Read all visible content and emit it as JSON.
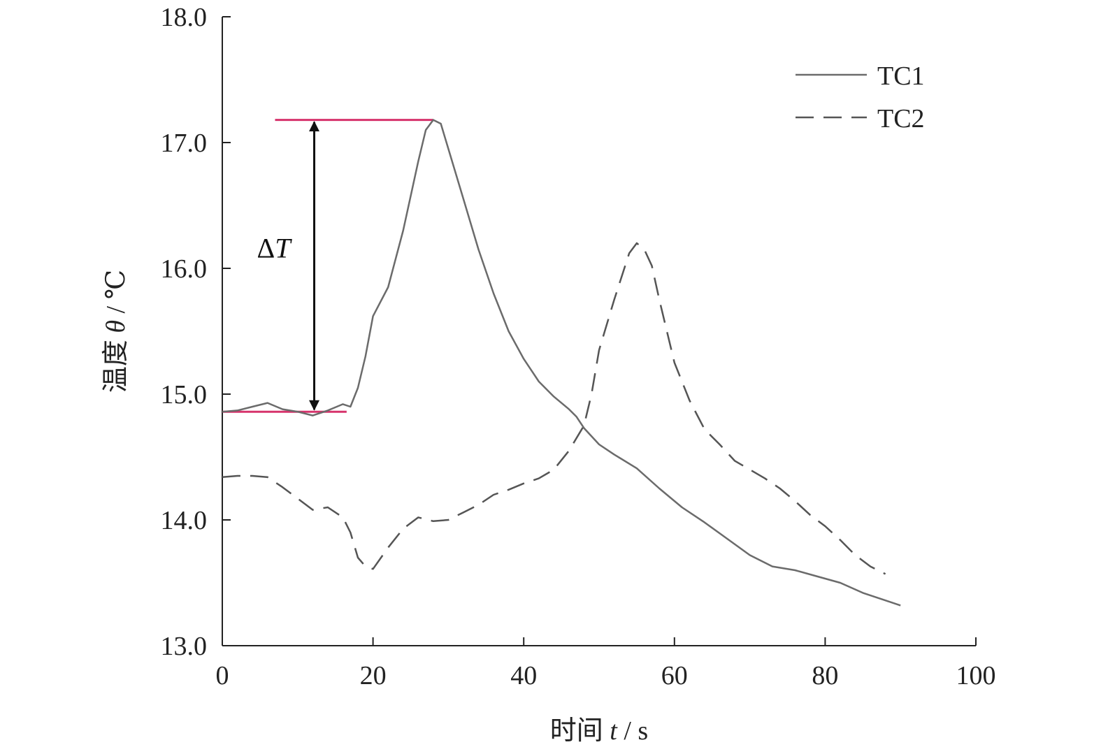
{
  "chart_data": {
    "type": "line",
    "xlabel": {
      "prefix": "时间 ",
      "var": "t",
      "suffix": " / s"
    },
    "ylabel": {
      "prefix": "温度 ",
      "var": "θ",
      "suffix": " / ℃"
    },
    "xlim": [
      0,
      100
    ],
    "ylim": [
      13.0,
      18.0
    ],
    "x_ticks": [
      "0",
      "20",
      "40",
      "60",
      "80",
      "100"
    ],
    "y_ticks": [
      "13.0",
      "14.0",
      "15.0",
      "16.0",
      "17.0",
      "18.0"
    ],
    "grid": false,
    "legend_position": "top-right",
    "series": [
      {
        "name": "TC1",
        "style": "solid",
        "color": "#6b6b6b",
        "points": [
          [
            0,
            14.86
          ],
          [
            2,
            14.87
          ],
          [
            4,
            14.9
          ],
          [
            6,
            14.93
          ],
          [
            8,
            14.88
          ],
          [
            10,
            14.86
          ],
          [
            12,
            14.83
          ],
          [
            14,
            14.87
          ],
          [
            16,
            14.92
          ],
          [
            17,
            14.9
          ],
          [
            18,
            15.05
          ],
          [
            19,
            15.3
          ],
          [
            20,
            15.62
          ],
          [
            22,
            15.85
          ],
          [
            24,
            16.3
          ],
          [
            26,
            16.85
          ],
          [
            27,
            17.1
          ],
          [
            28,
            17.18
          ],
          [
            29,
            17.15
          ],
          [
            30,
            16.95
          ],
          [
            32,
            16.55
          ],
          [
            34,
            16.15
          ],
          [
            36,
            15.8
          ],
          [
            38,
            15.5
          ],
          [
            40,
            15.28
          ],
          [
            42,
            15.1
          ],
          [
            44,
            14.98
          ],
          [
            46,
            14.88
          ],
          [
            47,
            14.82
          ],
          [
            48,
            14.73
          ],
          [
            50,
            14.6
          ],
          [
            52,
            14.52
          ],
          [
            55,
            14.41
          ],
          [
            58,
            14.25
          ],
          [
            61,
            14.1
          ],
          [
            64,
            13.98
          ],
          [
            67,
            13.85
          ],
          [
            70,
            13.72
          ],
          [
            73,
            13.63
          ],
          [
            76,
            13.6
          ],
          [
            79,
            13.55
          ],
          [
            82,
            13.5
          ],
          [
            85,
            13.42
          ],
          [
            88,
            13.36
          ],
          [
            90,
            13.32
          ]
        ]
      },
      {
        "name": "TC2",
        "style": "dashed",
        "color": "#555555",
        "points": [
          [
            0,
            14.34
          ],
          [
            2,
            14.35
          ],
          [
            4,
            14.35
          ],
          [
            6,
            14.34
          ],
          [
            8,
            14.26
          ],
          [
            10,
            14.17
          ],
          [
            12,
            14.08
          ],
          [
            14,
            14.1
          ],
          [
            16,
            14.02
          ],
          [
            17,
            13.9
          ],
          [
            18,
            13.7
          ],
          [
            19,
            13.63
          ],
          [
            20,
            13.61
          ],
          [
            22,
            13.78
          ],
          [
            24,
            13.93
          ],
          [
            26,
            14.02
          ],
          [
            28,
            13.99
          ],
          [
            30,
            14.0
          ],
          [
            32,
            14.06
          ],
          [
            34,
            14.12
          ],
          [
            36,
            14.2
          ],
          [
            38,
            14.24
          ],
          [
            40,
            14.29
          ],
          [
            42,
            14.33
          ],
          [
            44,
            14.4
          ],
          [
            46,
            14.55
          ],
          [
            48,
            14.75
          ],
          [
            49,
            15.0
          ],
          [
            50,
            15.35
          ],
          [
            52,
            15.75
          ],
          [
            54,
            16.12
          ],
          [
            55,
            16.2
          ],
          [
            56,
            16.15
          ],
          [
            57,
            16.02
          ],
          [
            58,
            15.75
          ],
          [
            60,
            15.25
          ],
          [
            62,
            14.95
          ],
          [
            64,
            14.72
          ],
          [
            66,
            14.6
          ],
          [
            68,
            14.47
          ],
          [
            70,
            14.4
          ],
          [
            72,
            14.33
          ],
          [
            74,
            14.25
          ],
          [
            76,
            14.15
          ],
          [
            78,
            14.04
          ],
          [
            80,
            13.95
          ],
          [
            82,
            13.84
          ],
          [
            84,
            13.72
          ],
          [
            86,
            13.63
          ],
          [
            88,
            13.57
          ]
        ]
      }
    ],
    "annotation": {
      "label": {
        "prefix": "Δ",
        "var": "T"
      },
      "top_line": {
        "x_start": 7,
        "x_end": 28,
        "y": 17.18,
        "color": "#d6336c"
      },
      "bottom_line": {
        "x_start": 0,
        "x_end": 16.5,
        "y": 14.86,
        "color": "#d6336c"
      },
      "arrow_x": 12.2
    }
  }
}
